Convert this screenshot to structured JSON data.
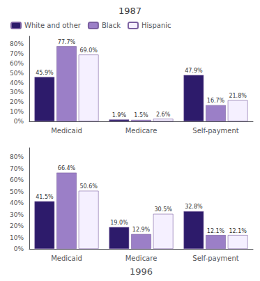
{
  "chart_data": [
    {
      "type": "bar",
      "title": "1987",
      "categories": [
        "Medicaid",
        "Medicare",
        "Self-payment"
      ],
      "series": [
        {
          "name": "White and other",
          "color": "#2d1b6b",
          "values": [
            45.9,
            1.9,
            47.9
          ],
          "value_labels": [
            "45.9%",
            "1.9%",
            "47.9%"
          ]
        },
        {
          "name": "Black",
          "color": "#9b7fc7",
          "values": [
            77.7,
            1.5,
            16.7
          ],
          "value_labels": [
            "77.7%",
            "1.5%",
            "16.7%"
          ]
        },
        {
          "name": "Hispanic",
          "color": "#f5f0ff",
          "values": [
            69.0,
            2.6,
            21.8
          ],
          "value_labels": [
            "69.0%",
            "2.6%",
            "21.8%"
          ]
        }
      ],
      "ylim": [
        0,
        88
      ],
      "yticks": [
        {
          "value": 0,
          "label": "0%"
        },
        {
          "value": 10,
          "label": "10%"
        },
        {
          "value": 20,
          "label": "20%"
        },
        {
          "value": 30,
          "label": "30%"
        },
        {
          "value": 40,
          "label": "40%"
        },
        {
          "value": 50,
          "label": "50%"
        },
        {
          "value": 60,
          "label": "60%"
        },
        {
          "value": 70,
          "label": "70%"
        },
        {
          "value": 80,
          "label": "80%"
        }
      ],
      "grid": false,
      "legend": "upper left",
      "data_labels": true
    },
    {
      "type": "bar",
      "xlabel": "1996",
      "categories": [
        "Medicaid",
        "Medicare",
        "Self-payment"
      ],
      "series": [
        {
          "name": "White and other",
          "color": "#2d1b6b",
          "values": [
            41.5,
            19.0,
            32.8
          ],
          "value_labels": [
            "41.5%",
            "19.0%",
            "32.8%"
          ]
        },
        {
          "name": "Black",
          "color": "#9b7fc7",
          "values": [
            66.4,
            12.9,
            12.1
          ],
          "value_labels": [
            "66.4%",
            "12.9%",
            "12.1%"
          ]
        },
        {
          "name": "Hispanic",
          "color": "#f5f0ff",
          "values": [
            50.6,
            30.5,
            12.1
          ],
          "value_labels": [
            "50.6%",
            "30.5%",
            "12.1%"
          ]
        }
      ],
      "ylim": [
        0,
        88
      ],
      "yticks": [
        {
          "value": 0,
          "label": "0%"
        },
        {
          "value": 10,
          "label": "10%"
        },
        {
          "value": 20,
          "label": "20%"
        },
        {
          "value": 30,
          "label": "30%"
        },
        {
          "value": 40,
          "label": "40%"
        },
        {
          "value": 50,
          "label": "50%"
        },
        {
          "value": 60,
          "label": "60%"
        },
        {
          "value": 70,
          "label": "70%"
        },
        {
          "value": 80,
          "label": "80%"
        }
      ],
      "grid": false,
      "legend": false,
      "data_labels": true
    }
  ]
}
